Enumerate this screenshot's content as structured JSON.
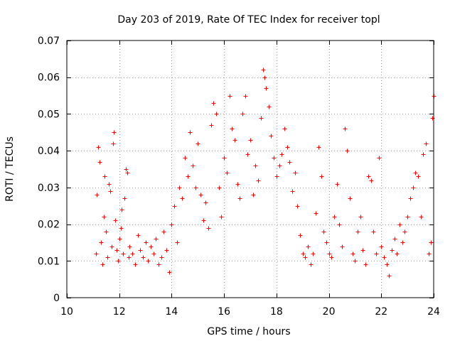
{
  "chart_data": {
    "type": "scatter",
    "title": "Day 203 of 2019, Rate Of TEC Index for receiver topl",
    "xlabel": "GPS time / hours",
    "ylabel": "ROTI / TECUs",
    "xlim": [
      10,
      24
    ],
    "ylim": [
      0,
      0.07
    ],
    "x_ticks": [
      10,
      12,
      14,
      16,
      18,
      20,
      22,
      24
    ],
    "x_tick_labels": [
      "10",
      "12",
      "14",
      "16",
      "18",
      "20",
      "22",
      "24"
    ],
    "y_ticks": [
      0,
      0.01,
      0.02,
      0.03,
      0.04,
      0.05,
      0.06,
      0.07
    ],
    "y_tick_labels": [
      "0",
      "0.01",
      "0.02",
      "0.03",
      "0.04",
      "0.05",
      "0.06",
      "0.07"
    ],
    "grid": true,
    "marker": "+",
    "series": [
      {
        "name": "ROTI",
        "color": "#ff0000",
        "points": [
          [
            11.1,
            0.012
          ],
          [
            11.15,
            0.028
          ],
          [
            11.2,
            0.041
          ],
          [
            11.25,
            0.037
          ],
          [
            11.3,
            0.015
          ],
          [
            11.35,
            0.009
          ],
          [
            11.4,
            0.022
          ],
          [
            11.45,
            0.033
          ],
          [
            11.5,
            0.018
          ],
          [
            11.55,
            0.011
          ],
          [
            11.6,
            0.031
          ],
          [
            11.65,
            0.029
          ],
          [
            11.7,
            0.014
          ],
          [
            11.75,
            0.042
          ],
          [
            11.8,
            0.045
          ],
          [
            11.85,
            0.021
          ],
          [
            11.9,
            0.013
          ],
          [
            11.95,
            0.01
          ],
          [
            12.0,
            0.016
          ],
          [
            12.05,
            0.019
          ],
          [
            12.1,
            0.024
          ],
          [
            12.15,
            0.012
          ],
          [
            12.2,
            0.027
          ],
          [
            12.25,
            0.035
          ],
          [
            12.3,
            0.034
          ],
          [
            12.35,
            0.011
          ],
          [
            12.4,
            0.014
          ],
          [
            12.5,
            0.012
          ],
          [
            12.6,
            0.009
          ],
          [
            12.7,
            0.017
          ],
          [
            12.8,
            0.013
          ],
          [
            12.9,
            0.011
          ],
          [
            13.0,
            0.015
          ],
          [
            13.1,
            0.01
          ],
          [
            13.2,
            0.014
          ],
          [
            13.3,
            0.012
          ],
          [
            13.4,
            0.016
          ],
          [
            13.5,
            0.009
          ],
          [
            13.6,
            0.011
          ],
          [
            13.7,
            0.018
          ],
          [
            13.8,
            0.013
          ],
          [
            13.9,
            0.007
          ],
          [
            14.0,
            0.02
          ],
          [
            14.1,
            0.025
          ],
          [
            14.2,
            0.015
          ],
          [
            14.3,
            0.03
          ],
          [
            14.4,
            0.027
          ],
          [
            14.5,
            0.038
          ],
          [
            14.6,
            0.033
          ],
          [
            14.7,
            0.045
          ],
          [
            14.8,
            0.036
          ],
          [
            14.9,
            0.03
          ],
          [
            15.0,
            0.042
          ],
          [
            15.1,
            0.028
          ],
          [
            15.2,
            0.021
          ],
          [
            15.3,
            0.026
          ],
          [
            15.4,
            0.019
          ],
          [
            15.5,
            0.047
          ],
          [
            15.6,
            0.053
          ],
          [
            15.7,
            0.05
          ],
          [
            15.8,
            0.03
          ],
          [
            15.9,
            0.022
          ],
          [
            16.0,
            0.038
          ],
          [
            16.1,
            0.034
          ],
          [
            16.2,
            0.055
          ],
          [
            16.3,
            0.046
          ],
          [
            16.4,
            0.043
          ],
          [
            16.5,
            0.031
          ],
          [
            16.6,
            0.027
          ],
          [
            16.7,
            0.05
          ],
          [
            16.8,
            0.055
          ],
          [
            16.9,
            0.039
          ],
          [
            17.0,
            0.043
          ],
          [
            17.1,
            0.028
          ],
          [
            17.2,
            0.036
          ],
          [
            17.3,
            0.032
          ],
          [
            17.4,
            0.049
          ],
          [
            17.5,
            0.062
          ],
          [
            17.55,
            0.06
          ],
          [
            17.6,
            0.057
          ],
          [
            17.7,
            0.052
          ],
          [
            17.8,
            0.044
          ],
          [
            17.9,
            0.038
          ],
          [
            18.0,
            0.033
          ],
          [
            18.1,
            0.036
          ],
          [
            18.2,
            0.039
          ],
          [
            18.3,
            0.046
          ],
          [
            18.4,
            0.041
          ],
          [
            18.5,
            0.037
          ],
          [
            18.6,
            0.029
          ],
          [
            18.7,
            0.034
          ],
          [
            18.8,
            0.025
          ],
          [
            18.9,
            0.017
          ],
          [
            19.0,
            0.012
          ],
          [
            19.1,
            0.011
          ],
          [
            19.2,
            0.014
          ],
          [
            19.3,
            0.009
          ],
          [
            19.4,
            0.012
          ],
          [
            19.5,
            0.023
          ],
          [
            19.6,
            0.041
          ],
          [
            19.7,
            0.033
          ],
          [
            19.8,
            0.018
          ],
          [
            19.9,
            0.015
          ],
          [
            20.0,
            0.012
          ],
          [
            20.1,
            0.011
          ],
          [
            20.2,
            0.022
          ],
          [
            20.3,
            0.031
          ],
          [
            20.4,
            0.02
          ],
          [
            20.5,
            0.014
          ],
          [
            20.6,
            0.046
          ],
          [
            20.7,
            0.04
          ],
          [
            20.8,
            0.027
          ],
          [
            20.9,
            0.012
          ],
          [
            21.0,
            0.01
          ],
          [
            21.1,
            0.018
          ],
          [
            21.2,
            0.022
          ],
          [
            21.3,
            0.013
          ],
          [
            21.4,
            0.009
          ],
          [
            21.5,
            0.033
          ],
          [
            21.6,
            0.032
          ],
          [
            21.7,
            0.018
          ],
          [
            21.8,
            0.012
          ],
          [
            21.9,
            0.038
          ],
          [
            22.0,
            0.014
          ],
          [
            22.1,
            0.011
          ],
          [
            22.2,
            0.009
          ],
          [
            22.3,
            0.006
          ],
          [
            22.4,
            0.013
          ],
          [
            22.5,
            0.016
          ],
          [
            22.6,
            0.012
          ],
          [
            22.7,
            0.02
          ],
          [
            22.8,
            0.015
          ],
          [
            22.9,
            0.018
          ],
          [
            23.0,
            0.022
          ],
          [
            23.1,
            0.027
          ],
          [
            23.2,
            0.03
          ],
          [
            23.3,
            0.034
          ],
          [
            23.4,
            0.033
          ],
          [
            23.5,
            0.022
          ],
          [
            23.6,
            0.039
          ],
          [
            23.7,
            0.042
          ],
          [
            23.8,
            0.012
          ],
          [
            23.9,
            0.015
          ],
          [
            23.95,
            0.049
          ],
          [
            24.0,
            0.055
          ]
        ]
      }
    ]
  }
}
